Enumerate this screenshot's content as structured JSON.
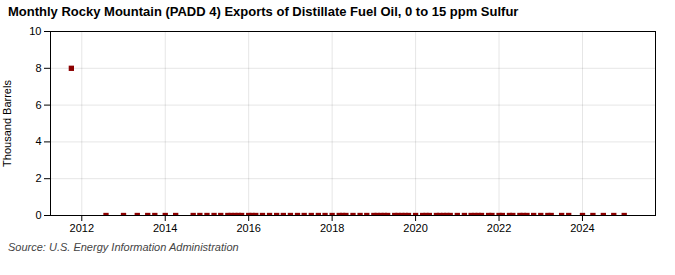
{
  "chart_data": {
    "type": "scatter",
    "title": "Monthly Rocky Mountain (PADD 4) Exports of Distillate Fuel Oil, 0 to 15 ppm Sulfur",
    "ylabel": "Thousand Barrels",
    "source": "Source: U.S. Energy Information Administration",
    "x": [
      2011.75,
      2012.58,
      2013.0,
      2013.33,
      2013.58,
      2013.75,
      2014.0,
      2014.25,
      2014.67,
      2014.83,
      2015.0,
      2015.17,
      2015.33,
      2015.5,
      2015.58,
      2015.67,
      2015.75,
      2015.83,
      2016.0,
      2016.08,
      2016.17,
      2016.33,
      2016.5,
      2016.67,
      2016.83,
      2017.0,
      2017.17,
      2017.33,
      2017.5,
      2017.67,
      2017.83,
      2018.0,
      2018.17,
      2018.25,
      2018.33,
      2018.5,
      2018.67,
      2018.83,
      2019.0,
      2019.08,
      2019.17,
      2019.25,
      2019.33,
      2019.5,
      2019.58,
      2019.67,
      2019.75,
      2019.83,
      2020.0,
      2020.17,
      2020.25,
      2020.33,
      2020.5,
      2020.58,
      2020.67,
      2020.75,
      2020.83,
      2021.0,
      2021.17,
      2021.33,
      2021.42,
      2021.5,
      2021.58,
      2021.75,
      2021.83,
      2022.0,
      2022.08,
      2022.25,
      2022.33,
      2022.5,
      2022.58,
      2022.67,
      2022.83,
      2023.0,
      2023.17,
      2023.25,
      2023.5,
      2023.67,
      2024.0,
      2024.25,
      2024.5,
      2024.75,
      2025.0
    ],
    "values": [
      8.0,
      0.0,
      0.0,
      0.0,
      0.0,
      0.0,
      0.0,
      0.0,
      0.0,
      0.0,
      0.0,
      0.0,
      0.0,
      0.0,
      0.0,
      0.0,
      0.0,
      0.0,
      0.0,
      0.0,
      0.0,
      0.0,
      0.0,
      0.0,
      0.0,
      0.0,
      0.0,
      0.0,
      0.0,
      0.0,
      0.0,
      0.0,
      0.0,
      0.0,
      0.0,
      0.0,
      0.0,
      0.0,
      0.0,
      0.0,
      0.0,
      0.0,
      0.0,
      0.0,
      0.0,
      0.0,
      0.0,
      0.0,
      0.0,
      0.0,
      0.0,
      0.0,
      0.0,
      0.0,
      0.0,
      0.0,
      0.0,
      0.0,
      0.0,
      0.0,
      0.0,
      0.0,
      0.0,
      0.0,
      0.0,
      0.0,
      0.0,
      0.0,
      0.0,
      0.0,
      0.0,
      0.0,
      0.0,
      0.0,
      0.0,
      0.0,
      0.0,
      0.0,
      0.0,
      0.0,
      0.0,
      0.0,
      0.0
    ],
    "color": "#8b0000",
    "marker": "square",
    "xlim": [
      2011.25,
      2025.75
    ],
    "xticks": [
      2012,
      2014,
      2016,
      2018,
      2020,
      2022,
      2024
    ],
    "ylim": [
      0,
      10
    ],
    "yticks": [
      0,
      2,
      4,
      6,
      8,
      10
    ],
    "grid": true
  }
}
